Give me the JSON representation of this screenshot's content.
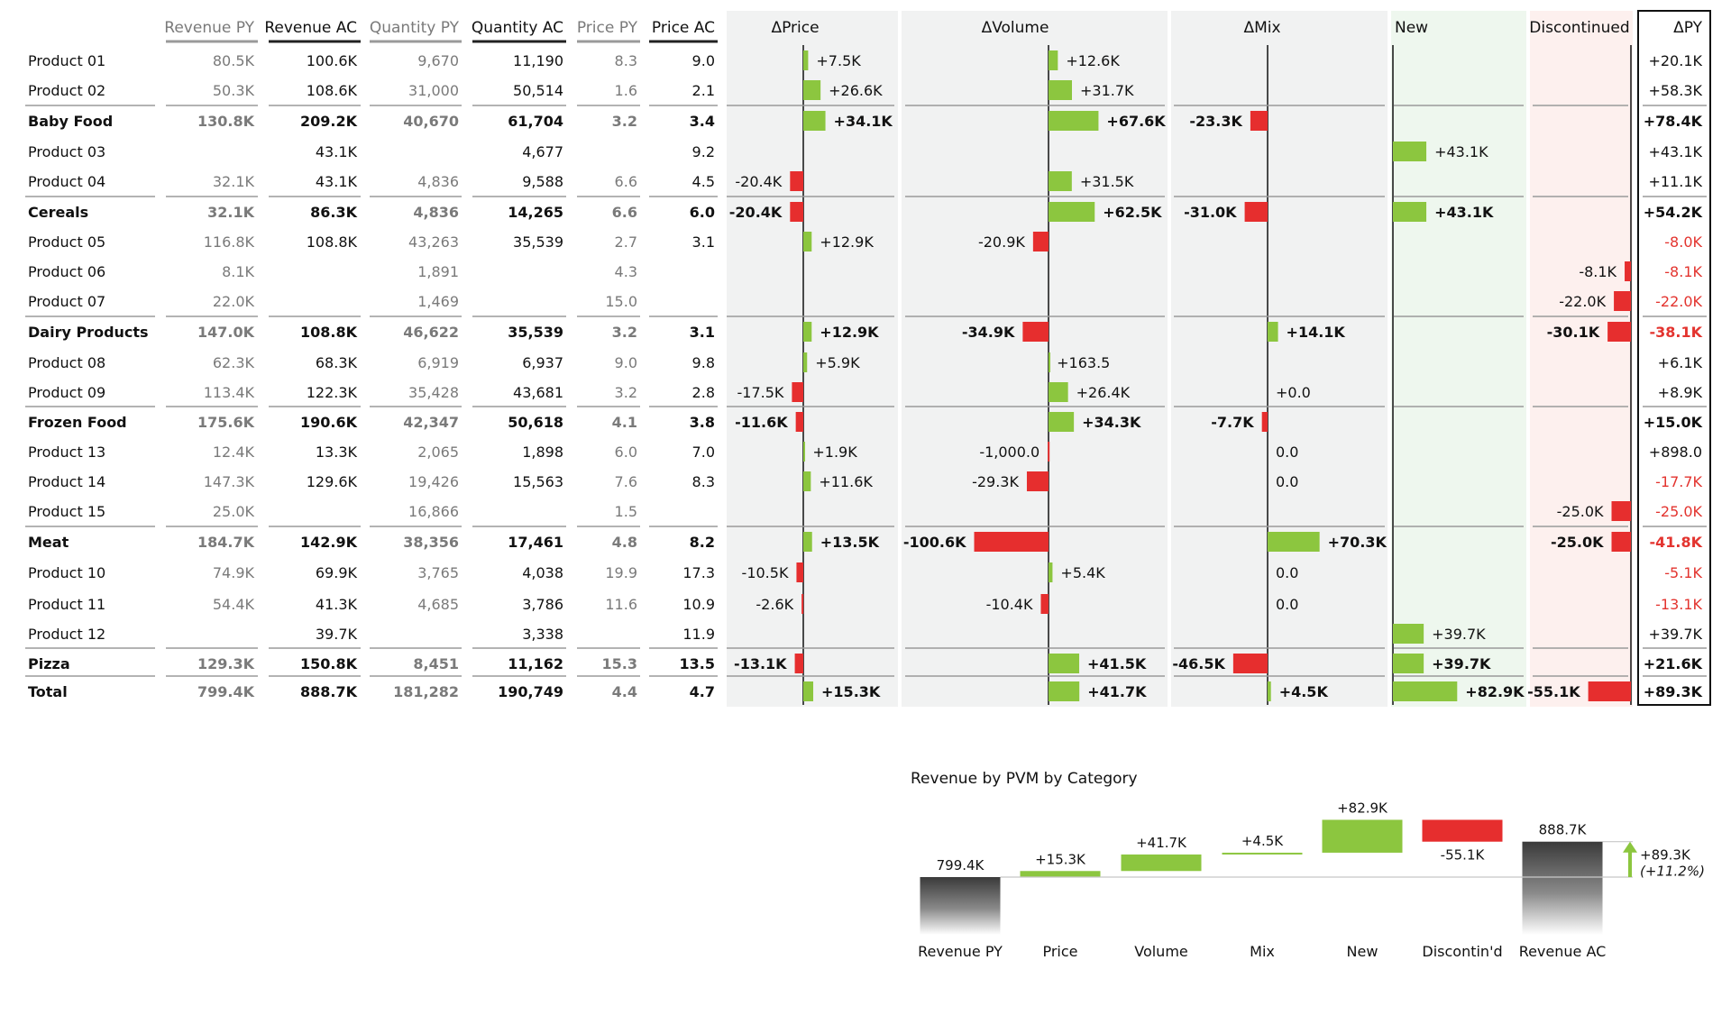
{
  "chart_data": [
    {
      "type": "table",
      "columns": {
        "label": "",
        "revenue_py": "Revenue PY",
        "revenue_ac": "Revenue AC",
        "quantity_py": "Quantity PY",
        "quantity_ac": "Quantity AC",
        "price_py": "Price PY",
        "price_ac": "Price AC",
        "d_price": "ΔPrice",
        "d_volume": "ΔVolume",
        "d_mix": "ΔMix",
        "new": "New",
        "discontinued": "Discontinued",
        "d_py": "ΔPY"
      },
      "rows": [
        {
          "label": "Product 01",
          "bold": false,
          "revenue_py": "80.5K",
          "revenue_ac": "100.6K",
          "quantity_py": "9,670",
          "quantity_ac": "11,190",
          "price_py": "8.3",
          "price_ac": "9.0",
          "d_price": {
            "v": 7.5,
            "t": "+7.5K"
          },
          "d_volume": {
            "v": 12.6,
            "t": "+12.6K"
          },
          "d_mix": null,
          "new": null,
          "discontinued": null,
          "d_py": "+20.1K"
        },
        {
          "label": "Product 02",
          "bold": false,
          "revenue_py": "50.3K",
          "revenue_ac": "108.6K",
          "quantity_py": "31,000",
          "quantity_ac": "50,514",
          "price_py": "1.6",
          "price_ac": "2.1",
          "d_price": {
            "v": 26.6,
            "t": "+26.6K"
          },
          "d_volume": {
            "v": 31.7,
            "t": "+31.7K"
          },
          "d_mix": null,
          "new": null,
          "discontinued": null,
          "d_py": "+58.3K"
        },
        {
          "label": "Baby Food",
          "bold": true,
          "revenue_py": "130.8K",
          "revenue_ac": "209.2K",
          "quantity_py": "40,670",
          "quantity_ac": "61,704",
          "price_py": "3.2",
          "price_ac": "3.4",
          "d_price": {
            "v": 34.1,
            "t": "+34.1K"
          },
          "d_volume": {
            "v": 67.6,
            "t": "+67.6K"
          },
          "d_mix": {
            "v": -23.3,
            "t": "-23.3K"
          },
          "new": null,
          "discontinued": null,
          "d_py": "+78.4K"
        },
        {
          "label": "Product 03",
          "bold": false,
          "revenue_py": "",
          "revenue_ac": "43.1K",
          "quantity_py": "",
          "quantity_ac": "4,677",
          "price_py": "",
          "price_ac": "9.2",
          "d_price": null,
          "d_volume": null,
          "d_mix": null,
          "new": {
            "v": 43.1,
            "t": "+43.1K"
          },
          "discontinued": null,
          "d_py": "+43.1K"
        },
        {
          "label": "Product 04",
          "bold": false,
          "revenue_py": "32.1K",
          "revenue_ac": "43.1K",
          "quantity_py": "4,836",
          "quantity_ac": "9,588",
          "price_py": "6.6",
          "price_ac": "4.5",
          "d_price": {
            "v": -20.4,
            "t": "-20.4K"
          },
          "d_volume": {
            "v": 31.5,
            "t": "+31.5K"
          },
          "d_mix": null,
          "new": null,
          "discontinued": null,
          "d_py": "+11.1K"
        },
        {
          "label": "Cereals",
          "bold": true,
          "revenue_py": "32.1K",
          "revenue_ac": "86.3K",
          "quantity_py": "4,836",
          "quantity_ac": "14,265",
          "price_py": "6.6",
          "price_ac": "6.0",
          "d_price": {
            "v": -20.4,
            "t": "-20.4K"
          },
          "d_volume": {
            "v": 62.5,
            "t": "+62.5K"
          },
          "d_mix": {
            "v": -31.0,
            "t": "-31.0K"
          },
          "new": {
            "v": 43.1,
            "t": "+43.1K"
          },
          "discontinued": null,
          "d_py": "+54.2K"
        },
        {
          "label": "Product 05",
          "bold": false,
          "revenue_py": "116.8K",
          "revenue_ac": "108.8K",
          "quantity_py": "43,263",
          "quantity_ac": "35,539",
          "price_py": "2.7",
          "price_ac": "3.1",
          "d_price": {
            "v": 12.9,
            "t": "+12.9K"
          },
          "d_volume": {
            "v": -20.9,
            "t": "-20.9K"
          },
          "d_mix": null,
          "new": null,
          "discontinued": null,
          "d_py": "-8.0K"
        },
        {
          "label": "Product 06",
          "bold": false,
          "revenue_py": "8.1K",
          "revenue_ac": "",
          "quantity_py": "1,891",
          "quantity_ac": "",
          "price_py": "4.3",
          "price_ac": "",
          "d_price": null,
          "d_volume": null,
          "d_mix": null,
          "new": null,
          "discontinued": {
            "v": -8.1,
            "t": "-8.1K"
          },
          "d_py": "-8.1K"
        },
        {
          "label": "Product 07",
          "bold": false,
          "revenue_py": "22.0K",
          "revenue_ac": "",
          "quantity_py": "1,469",
          "quantity_ac": "",
          "price_py": "15.0",
          "price_ac": "",
          "d_price": null,
          "d_volume": null,
          "d_mix": null,
          "new": null,
          "discontinued": {
            "v": -22.0,
            "t": "-22.0K"
          },
          "d_py": "-22.0K"
        },
        {
          "label": "Dairy Products",
          "bold": true,
          "revenue_py": "147.0K",
          "revenue_ac": "108.8K",
          "quantity_py": "46,622",
          "quantity_ac": "35,539",
          "price_py": "3.2",
          "price_ac": "3.1",
          "d_price": {
            "v": 12.9,
            "t": "+12.9K"
          },
          "d_volume": {
            "v": -34.9,
            "t": "-34.9K"
          },
          "d_mix": {
            "v": 14.1,
            "t": "+14.1K"
          },
          "new": null,
          "discontinued": {
            "v": -30.1,
            "t": "-30.1K"
          },
          "d_py": "-38.1K"
        },
        {
          "label": "Product 08",
          "bold": false,
          "revenue_py": "62.3K",
          "revenue_ac": "68.3K",
          "quantity_py": "6,919",
          "quantity_ac": "6,937",
          "price_py": "9.0",
          "price_ac": "9.8",
          "d_price": {
            "v": 5.9,
            "t": "+5.9K"
          },
          "d_volume": {
            "v": 0.1635,
            "t": "+163.5"
          },
          "d_mix": null,
          "new": null,
          "discontinued": null,
          "d_py": "+6.1K"
        },
        {
          "label": "Product 09",
          "bold": false,
          "revenue_py": "113.4K",
          "revenue_ac": "122.3K",
          "quantity_py": "35,428",
          "quantity_ac": "43,681",
          "price_py": "3.2",
          "price_ac": "2.8",
          "d_price": {
            "v": -17.5,
            "t": "-17.5K"
          },
          "d_volume": {
            "v": 26.4,
            "t": "+26.4K"
          },
          "d_mix": {
            "v": 0,
            "t": "+0.0"
          },
          "new": null,
          "discontinued": null,
          "d_py": "+8.9K"
        },
        {
          "label": "Frozen Food",
          "bold": true,
          "revenue_py": "175.6K",
          "revenue_ac": "190.6K",
          "quantity_py": "42,347",
          "quantity_ac": "50,618",
          "price_py": "4.1",
          "price_ac": "3.8",
          "d_price": {
            "v": -11.6,
            "t": "-11.6K"
          },
          "d_volume": {
            "v": 34.3,
            "t": "+34.3K"
          },
          "d_mix": {
            "v": -7.7,
            "t": "-7.7K"
          },
          "new": null,
          "discontinued": null,
          "d_py": "+15.0K"
        },
        {
          "label": "Product 13",
          "bold": false,
          "revenue_py": "12.4K",
          "revenue_ac": "13.3K",
          "quantity_py": "2,065",
          "quantity_ac": "1,898",
          "price_py": "6.0",
          "price_ac": "7.0",
          "d_price": {
            "v": 1.9,
            "t": "+1.9K"
          },
          "d_volume": {
            "v": -1.0,
            "t": "-1,000.0"
          },
          "d_mix": {
            "v": 0,
            "t": "0.0"
          },
          "new": null,
          "discontinued": null,
          "d_py": "+898.0"
        },
        {
          "label": "Product 14",
          "bold": false,
          "revenue_py": "147.3K",
          "revenue_ac": "129.6K",
          "quantity_py": "19,426",
          "quantity_ac": "15,563",
          "price_py": "7.6",
          "price_ac": "8.3",
          "d_price": {
            "v": 11.6,
            "t": "+11.6K"
          },
          "d_volume": {
            "v": -29.3,
            "t": "-29.3K"
          },
          "d_mix": {
            "v": 0,
            "t": "0.0"
          },
          "new": null,
          "discontinued": null,
          "d_py": "-17.7K"
        },
        {
          "label": "Product 15",
          "bold": false,
          "revenue_py": "25.0K",
          "revenue_ac": "",
          "quantity_py": "16,866",
          "quantity_ac": "",
          "price_py": "1.5",
          "price_ac": "",
          "d_price": null,
          "d_volume": null,
          "d_mix": null,
          "new": null,
          "discontinued": {
            "v": -25.0,
            "t": "-25.0K"
          },
          "d_py": "-25.0K"
        },
        {
          "label": "Meat",
          "bold": true,
          "revenue_py": "184.7K",
          "revenue_ac": "142.9K",
          "quantity_py": "38,356",
          "quantity_ac": "17,461",
          "price_py": "4.8",
          "price_ac": "8.2",
          "d_price": {
            "v": 13.5,
            "t": "+13.5K"
          },
          "d_volume": {
            "v": -100.6,
            "t": "-100.6K"
          },
          "d_mix": {
            "v": 70.3,
            "t": "+70.3K"
          },
          "new": null,
          "discontinued": {
            "v": -25.0,
            "t": "-25.0K"
          },
          "d_py": "-41.8K"
        },
        {
          "label": "Product 10",
          "bold": false,
          "revenue_py": "74.9K",
          "revenue_ac": "69.9K",
          "quantity_py": "3,765",
          "quantity_ac": "4,038",
          "price_py": "19.9",
          "price_ac": "17.3",
          "d_price": {
            "v": -10.5,
            "t": "-10.5K"
          },
          "d_volume": {
            "v": 5.4,
            "t": "+5.4K"
          },
          "d_mix": {
            "v": 0,
            "t": "0.0"
          },
          "new": null,
          "discontinued": null,
          "d_py": "-5.1K"
        },
        {
          "label": "Product 11",
          "bold": false,
          "revenue_py": "54.4K",
          "revenue_ac": "41.3K",
          "quantity_py": "4,685",
          "quantity_ac": "3,786",
          "price_py": "11.6",
          "price_ac": "10.9",
          "d_price": {
            "v": -2.6,
            "t": "-2.6K"
          },
          "d_volume": {
            "v": -10.4,
            "t": "-10.4K"
          },
          "d_mix": {
            "v": 0,
            "t": "0.0"
          },
          "new": null,
          "discontinued": null,
          "d_py": "-13.1K"
        },
        {
          "label": "Product 12",
          "bold": false,
          "revenue_py": "",
          "revenue_ac": "39.7K",
          "quantity_py": "",
          "quantity_ac": "3,338",
          "price_py": "",
          "price_ac": "11.9",
          "d_price": null,
          "d_volume": null,
          "d_mix": null,
          "new": {
            "v": 39.7,
            "t": "+39.7K"
          },
          "discontinued": null,
          "d_py": "+39.7K"
        },
        {
          "label": "Pizza",
          "bold": true,
          "revenue_py": "129.3K",
          "revenue_ac": "150.8K",
          "quantity_py": "8,451",
          "quantity_ac": "11,162",
          "price_py": "15.3",
          "price_ac": "13.5",
          "d_price": {
            "v": -13.1,
            "t": "-13.1K"
          },
          "d_volume": {
            "v": 41.5,
            "t": "+41.5K"
          },
          "d_mix": {
            "v": -46.5,
            "t": "-46.5K"
          },
          "new": {
            "v": 39.7,
            "t": "+39.7K"
          },
          "discontinued": null,
          "d_py": "+21.6K"
        },
        {
          "label": "Total",
          "bold": true,
          "revenue_py": "799.4K",
          "revenue_ac": "888.7K",
          "quantity_py": "181,282",
          "quantity_ac": "190,749",
          "price_py": "4.4",
          "price_ac": "4.7",
          "d_price": {
            "v": 15.3,
            "t": "+15.3K"
          },
          "d_volume": {
            "v": 41.7,
            "t": "+41.7K"
          },
          "d_mix": {
            "v": 4.5,
            "t": "+4.5K"
          },
          "new": {
            "v": 82.9,
            "t": "+82.9K"
          },
          "discontinued": {
            "v": -55.1,
            "t": "-55.1K"
          },
          "d_py": "+89.3K"
        }
      ]
    },
    {
      "type": "bar",
      "subtype": "waterfall",
      "title": "Revenue by PVM by Category",
      "categories": [
        "Revenue PY",
        "Price",
        "Volume",
        "Mix",
        "New",
        "Discontin'd",
        "Revenue AC"
      ],
      "values": [
        799.4,
        15.3,
        41.7,
        4.5,
        82.9,
        -55.1,
        888.7
      ],
      "value_labels": [
        "799.4K",
        "+15.3K",
        "+41.7K",
        "+4.5K",
        "+82.9K",
        "-55.1K",
        "888.7K"
      ],
      "delta_label": "+89.3K",
      "delta_pct_label": "(+11.2%)"
    }
  ],
  "colors": {
    "positive": "#8cc63f",
    "negative": "#e62e2e",
    "text": "#111111",
    "grey_text": "#7a7a7a",
    "panel_grey": "#f1f2f2",
    "panel_green": "#eef7ee",
    "panel_red": "#fdf0ee",
    "total_dark": "#404040"
  }
}
